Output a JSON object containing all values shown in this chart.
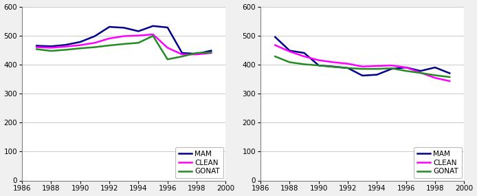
{
  "years": [
    1987,
    1988,
    1989,
    1990,
    1991,
    1992,
    1993,
    1994,
    1995,
    1996,
    1997,
    1998,
    1999
  ],
  "left": {
    "MAM": [
      465,
      463,
      468,
      478,
      498,
      530,
      527,
      515,
      533,
      528,
      440,
      437,
      448
    ],
    "CLEAN": [
      460,
      458,
      462,
      467,
      475,
      490,
      498,
      500,
      504,
      458,
      435,
      435,
      440
    ],
    "GONAT": [
      453,
      447,
      451,
      456,
      460,
      466,
      471,
      475,
      499,
      418,
      428,
      440,
      442
    ]
  },
  "right": {
    "MAM": [
      495,
      448,
      440,
      397,
      393,
      388,
      362,
      365,
      385,
      390,
      378,
      390,
      370
    ],
    "CLEAN": [
      467,
      445,
      428,
      415,
      408,
      403,
      393,
      395,
      397,
      390,
      372,
      354,
      343
    ],
    "GONAT": [
      428,
      408,
      401,
      397,
      392,
      388,
      385,
      385,
      387,
      378,
      371,
      363,
      357
    ]
  },
  "colors": {
    "MAM": "#00008B",
    "CLEAN": "#FF00FF",
    "GONAT": "#228B22"
  },
  "ylim": [
    0,
    600
  ],
  "yticks": [
    0,
    100,
    200,
    300,
    400,
    500,
    600
  ],
  "xlim": [
    1986,
    2000
  ],
  "xticks": [
    1986,
    1988,
    1990,
    1992,
    1994,
    1996,
    1998,
    2000
  ],
  "legend_labels": [
    "MAM",
    "CLEAN",
    "GONAT"
  ],
  "linewidth": 1.8,
  "bg_color": "#f0f0f0",
  "plot_bg": "#ffffff"
}
